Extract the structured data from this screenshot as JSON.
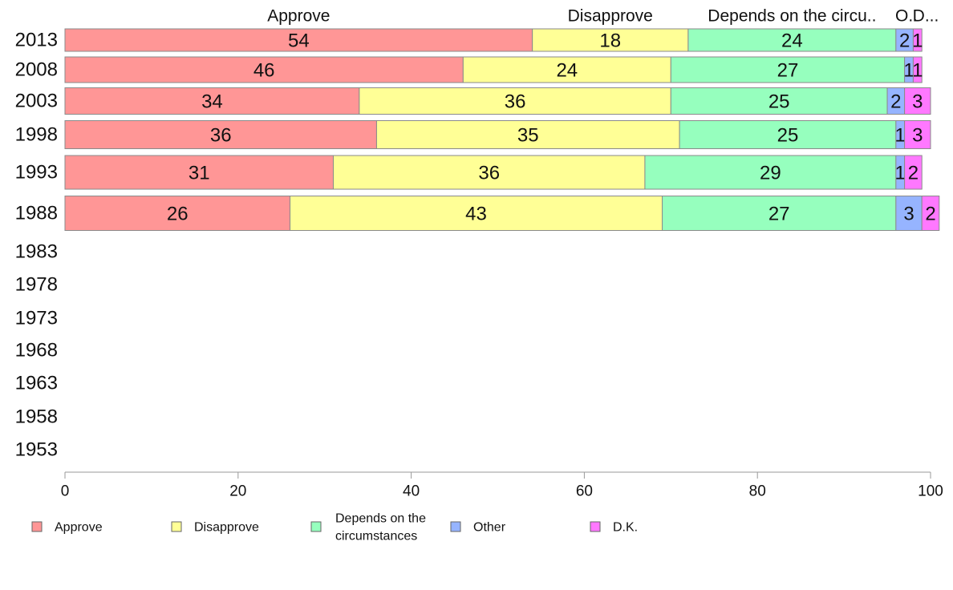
{
  "chart_data": {
    "type": "bar",
    "orientation": "horizontal",
    "stacked": true,
    "categories": [
      "2013",
      "2008",
      "2003",
      "1998",
      "1993",
      "1988",
      "1983",
      "1978",
      "1973",
      "1968",
      "1963",
      "1958",
      "1953"
    ],
    "series": [
      {
        "name": "Approve",
        "color": "#ff9696",
        "values": [
          54,
          46,
          34,
          36,
          31,
          26,
          null,
          null,
          null,
          null,
          null,
          null,
          null
        ],
        "labels": [
          "54",
          "46",
          "34",
          "36",
          "31",
          "26",
          "",
          "",
          "",
          "",
          "",
          "",
          ""
        ]
      },
      {
        "name": "Disapprove",
        "color": "#ffff96",
        "values": [
          18,
          24,
          36,
          35,
          36,
          43,
          null,
          null,
          null,
          null,
          null,
          null,
          null
        ],
        "labels": [
          "18",
          "24",
          "36",
          "35",
          "36",
          "43",
          "",
          "",
          "",
          "",
          "",
          "",
          ""
        ]
      },
      {
        "name": "Depends on the circumstances",
        "color": "#96ffbe",
        "values": [
          24,
          27,
          25,
          25,
          29,
          27,
          null,
          null,
          null,
          null,
          null,
          null,
          null
        ],
        "labels": [
          "24",
          "27",
          "25",
          "25",
          "29",
          "27",
          "",
          "",
          "",
          "",
          "",
          "",
          ""
        ]
      },
      {
        "name": "Other",
        "color": "#96b4ff",
        "values": [
          2,
          1,
          2,
          1,
          1,
          3,
          null,
          null,
          null,
          null,
          null,
          null,
          null
        ],
        "labels": [
          "2",
          "1",
          "2",
          "1",
          "1",
          "3",
          "",
          "",
          "",
          "",
          "",
          "",
          ""
        ]
      },
      {
        "name": "D.K.",
        "color": "#ff78ff",
        "values": [
          1,
          1,
          3,
          3,
          2,
          2,
          null,
          null,
          null,
          null,
          null,
          null,
          null
        ],
        "labels": [
          "1",
          "1",
          "3",
          "3",
          "2",
          "2",
          "",
          "",
          "",
          "",
          "",
          "",
          ""
        ]
      }
    ],
    "top_labels": [
      "Approve",
      "Disapprove",
      "Depends on the circu..",
      "O..",
      "D..."
    ],
    "xlim": [
      0,
      100
    ],
    "xticks": [
      0,
      20,
      40,
      60,
      80,
      100
    ],
    "legend": {
      "placement": "bottom",
      "entries": [
        {
          "lines": [
            "Approve"
          ]
        },
        {
          "lines": [
            "Disapprove"
          ]
        },
        {
          "lines": [
            "Depends on the",
            "circumstances"
          ]
        },
        {
          "lines": [
            "Other"
          ]
        },
        {
          "lines": [
            "D.K."
          ]
        }
      ]
    },
    "grid": false
  }
}
